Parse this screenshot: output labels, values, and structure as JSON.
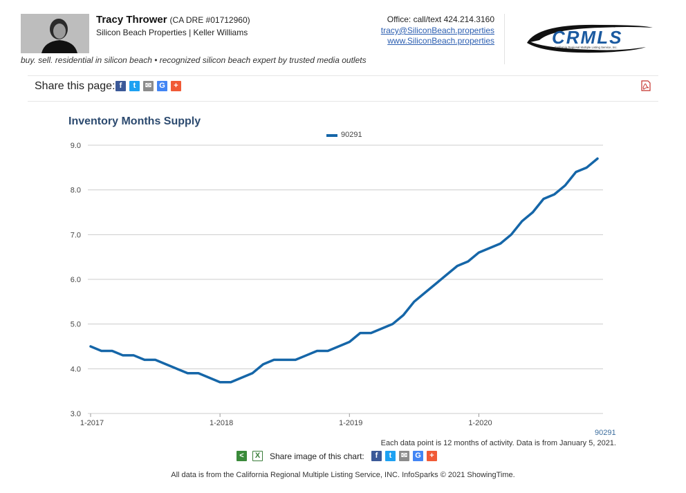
{
  "agent": {
    "name": "Tracy Thrower",
    "dre": "(CA DRE #01712960)",
    "company": "Silicon Beach Properties | Keller Williams",
    "tagline": "buy. sell. residential in silicon beach • recognized silicon beach expert by trusted media outlets"
  },
  "contact": {
    "office": "Office: call/text 424.214.3160",
    "email": "tracy@SiliconBeach.properties",
    "website": "www.SiliconBeach.properties"
  },
  "logo": {
    "text": "CRMLS",
    "subtext": "California Regional Multiple Listing Service, Inc."
  },
  "share": {
    "label": "Share this page:",
    "image_label": "Share image of this chart:",
    "buttons": [
      {
        "name": "facebook",
        "glyph": "f",
        "color": "#3b5998"
      },
      {
        "name": "twitter",
        "glyph": "t",
        "color": "#1da1f2"
      },
      {
        "name": "email",
        "glyph": "✉",
        "color": "#8c8c8c"
      },
      {
        "name": "google",
        "glyph": "G",
        "color": "#4285f4"
      },
      {
        "name": "more",
        "glyph": "+",
        "color": "#f05a36"
      }
    ]
  },
  "colors": {
    "series": "#1566a8",
    "title": "#2c4a6f",
    "grid": "#cccccc"
  },
  "chart_data": {
    "type": "line",
    "title": "Inventory Months Supply",
    "xlabel": "",
    "ylabel": "",
    "ylim": [
      3.0,
      9.0
    ],
    "yticks": [
      "3.0",
      "4.0",
      "5.0",
      "6.0",
      "7.0",
      "8.0",
      "9.0"
    ],
    "xticks": [
      "1-2017",
      "1-2018",
      "1-2019",
      "1-2020"
    ],
    "x_start": "1-2017",
    "grid": true,
    "legend_position": "top-center",
    "series": [
      {
        "name": "90291",
        "values": [
          4.5,
          4.4,
          4.4,
          4.3,
          4.3,
          4.2,
          4.2,
          4.1,
          4.0,
          3.9,
          3.9,
          3.8,
          3.7,
          3.7,
          3.8,
          3.9,
          4.1,
          4.2,
          4.2,
          4.2,
          4.3,
          4.4,
          4.4,
          4.5,
          4.6,
          4.8,
          4.8,
          4.9,
          5.0,
          5.2,
          5.5,
          5.7,
          5.9,
          6.1,
          6.3,
          6.4,
          6.6,
          6.7,
          6.8,
          7.0,
          7.3,
          7.5,
          7.8,
          7.9,
          8.1,
          8.4,
          8.5,
          8.7
        ]
      }
    ]
  },
  "notes": {
    "series_tag": "90291",
    "data_note": "Each data point is 12 months of activity. Data is from January 5, 2021.",
    "footer": "All data is from the California Regional Multiple Listing Service, INC. InfoSparks © 2021 ShowingTime."
  }
}
